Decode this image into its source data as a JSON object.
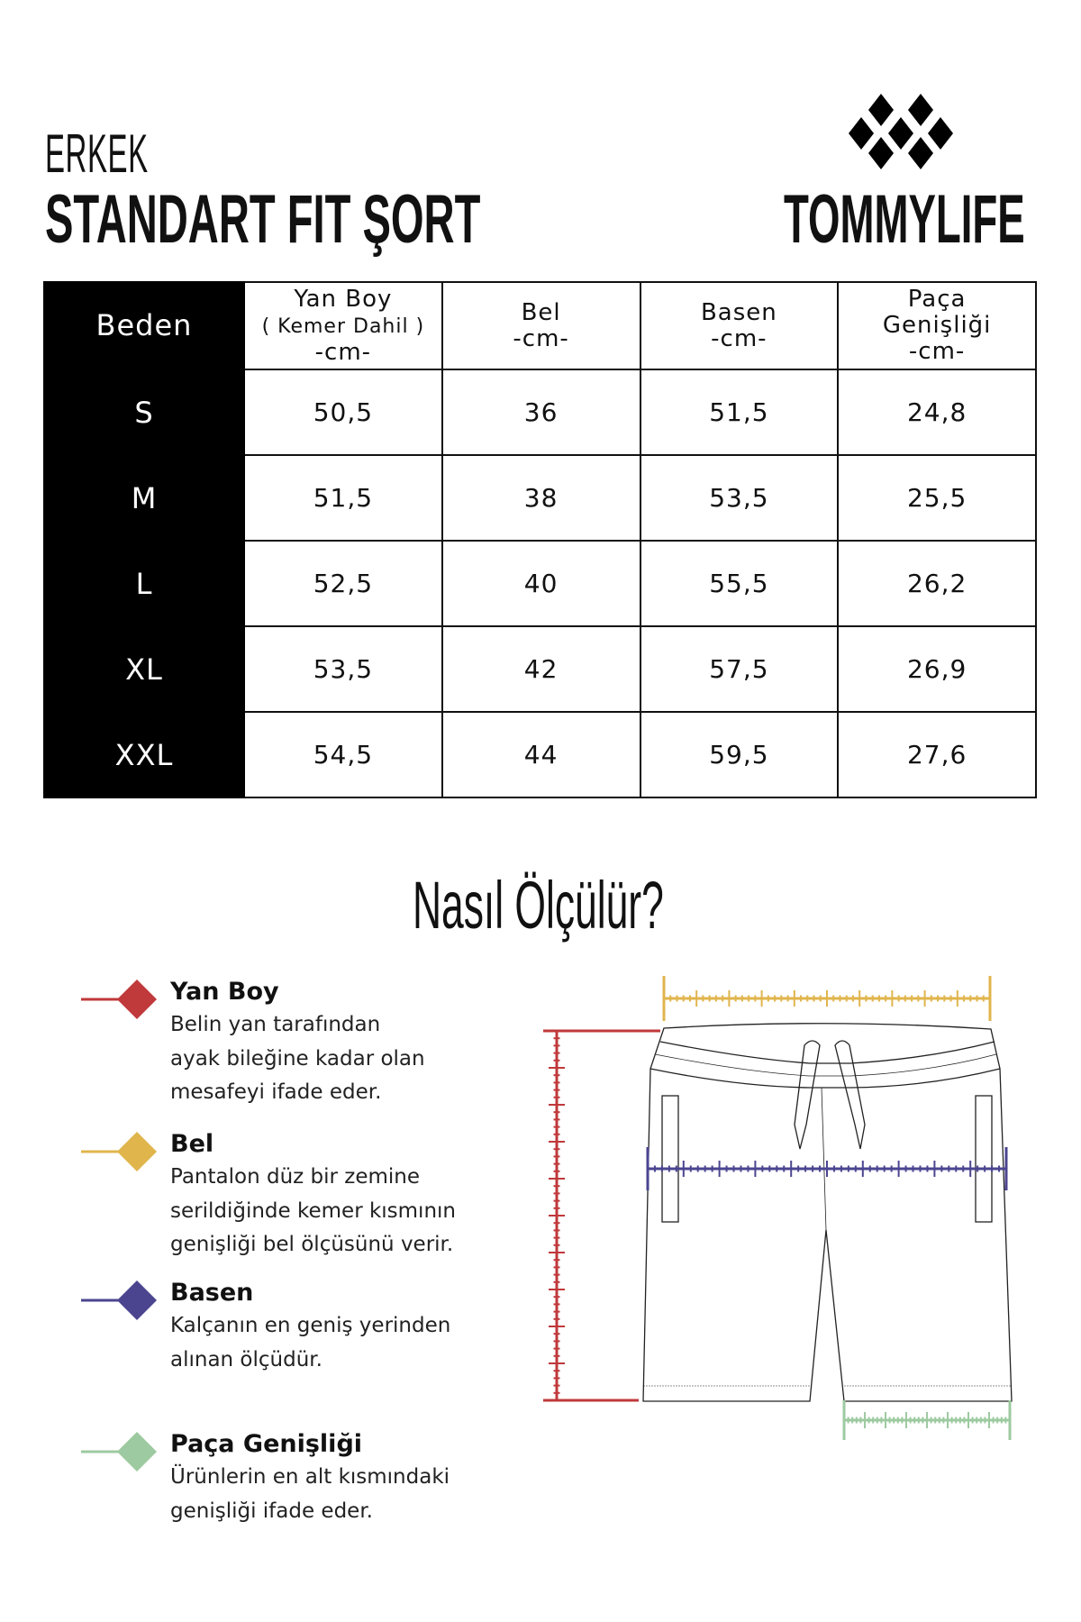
{
  "header": {
    "subtitle": "ERKEK",
    "title": "STANDART FIT ŞORT",
    "brand": "TOMMYLIFE",
    "brand_logo": "diamond-cluster-logo"
  },
  "table": {
    "size_header": "Beden",
    "columns": [
      {
        "name": "Yan Boy",
        "note": "( Kemer Dahil )",
        "unit": "-cm-"
      },
      {
        "name": "Bel",
        "unit": "-cm-"
      },
      {
        "name": "Basen",
        "unit": "-cm-"
      },
      {
        "name": "Paça",
        "name2": "Genişliği",
        "unit": "-cm-"
      }
    ],
    "rows": [
      {
        "size": "S",
        "values": [
          "50,5",
          "36",
          "51,5",
          "24,8"
        ]
      },
      {
        "size": "M",
        "values": [
          "51,5",
          "38",
          "53,5",
          "25,5"
        ]
      },
      {
        "size": "L",
        "values": [
          "52,5",
          "40",
          "55,5",
          "26,2"
        ]
      },
      {
        "size": "XL",
        "values": [
          "53,5",
          "42",
          "57,5",
          "26,9"
        ]
      },
      {
        "size": "XXL",
        "values": [
          "54,5",
          "44",
          "59,5",
          "27,6"
        ]
      }
    ]
  },
  "guide": {
    "title": "Nasıl Ölçülür?",
    "items": [
      {
        "title": "Yan Boy",
        "lines": [
          "Belin yan tarafından",
          "ayak bileğine kadar olan",
          "mesafeyi ifade eder."
        ],
        "color": "#c0393b"
      },
      {
        "title": "Bel",
        "lines": [
          "Pantalon düz bir zemine",
          "serildiğinde kemer kısmının",
          "genişliği bel ölçüsünü verir."
        ],
        "color": "#e0b54c"
      },
      {
        "title": "Basen",
        "lines": [
          "Kalçanın en geniş yerinden",
          "alınan ölçüdür."
        ],
        "color": "#4b4590"
      },
      {
        "title": "Paça Genişliği",
        "lines": [
          "Ürünlerin en alt kısmındaki",
          "genişliği ifade eder."
        ],
        "color": "#9dcaa0"
      }
    ]
  }
}
